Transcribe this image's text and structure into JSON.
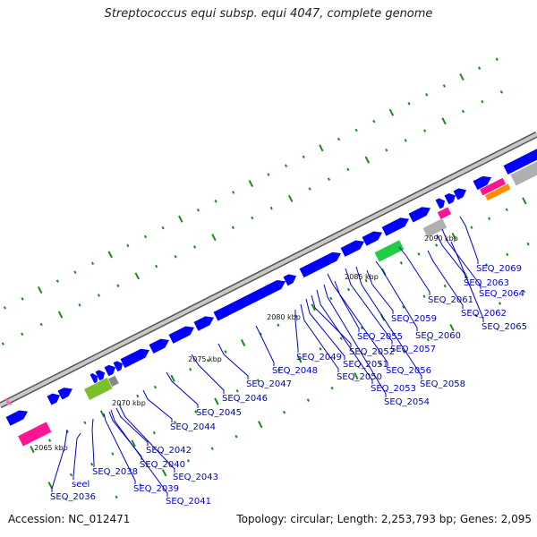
{
  "title": "Streptococcus equi subsp. equi 4047, complete genome",
  "footer": {
    "accession": "Accession: NC_012471",
    "summary": "Topology: circular; Length: 2,253,793 bp; Genes: 2,095"
  },
  "colors": {
    "backbone": "#909090",
    "cds": "#0000ff",
    "trna": "#ff1493",
    "rrna": "#7bbf2a",
    "other_rna": "#22cc44",
    "misc": "#b0b0b0",
    "repeat": "#ff8c00",
    "gc_skew": "#1a8c1a",
    "label": "#0000cc"
  },
  "scale_labels": [
    "2065 kbp",
    "2070 kbp",
    "2075 kbp",
    "2080 kbp",
    "2085 kbp",
    "2090 kbp"
  ],
  "genes": [
    "SEQ_2036",
    "seel",
    "SEQ_2038",
    "SEQ_2039",
    "SEQ_2040",
    "SEQ_2041",
    "SEQ_2042",
    "SEQ_2043",
    "SEQ_2044",
    "SEQ_2045",
    "SEQ_2046",
    "SEQ_2047",
    "SEQ_2048",
    "SEQ_2049",
    "SEQ_2050",
    "SEQ_2051",
    "SEQ_2052",
    "SEQ_2053",
    "SEQ_2054",
    "SEQ_2055",
    "SEQ_2056",
    "SEQ_2057",
    "SEQ_2058",
    "SEQ_2059",
    "SEQ_2060",
    "SEQ_2061",
    "SEQ_2062",
    "SEQ_2063",
    "SEQ_2064",
    "SEQ_2065",
    "SEQ_2069"
  ]
}
